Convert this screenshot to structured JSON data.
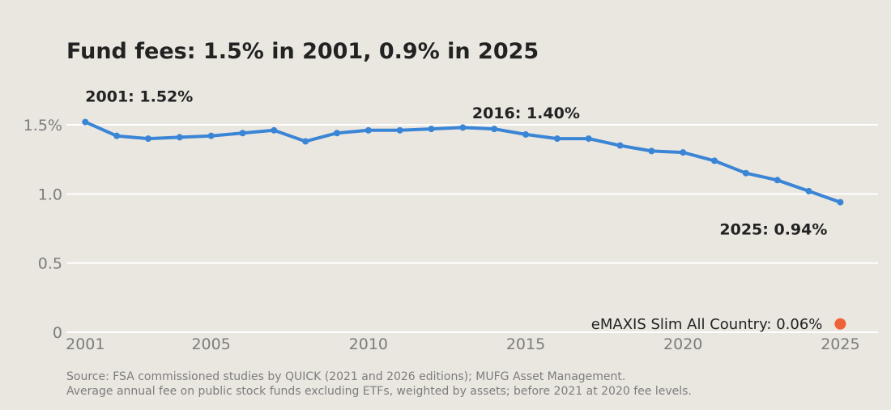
{
  "title": "Fund fees: 1.5% in 2001, 0.9% in 2025",
  "source_lines": [
    "Source: FSA commissioned studies by QUICK (2021 and 2026 editions); MUFG Asset Management.",
    "Average annual fee on public stock funds excluding ETFs, weighted by assets; before 2021 at 2020 fee levels."
  ],
  "colors": {
    "background": "#eae7e1",
    "line": "#3a85d5",
    "point": "#ed6239",
    "grid": "#ffffff",
    "tick_text": "#7d7d7d",
    "label_text": "#222222"
  },
  "chart_data": {
    "type": "line",
    "title": "Fund fees: 1.5% in 2001, 0.9% in 2025",
    "xlabel": "",
    "ylabel": "",
    "xlim": [
      2000.4,
      2026.2
    ],
    "ylim": [
      0,
      1.6
    ],
    "grid": "horizontal",
    "x_ticks": [
      2001,
      2005,
      2010,
      2015,
      2020,
      2025
    ],
    "x_tick_labels": [
      "2001",
      "2005",
      "2010",
      "2015",
      "2020",
      "2025"
    ],
    "y_ticks": [
      0,
      0.5,
      1.0,
      1.5
    ],
    "y_tick_labels": [
      "0",
      "0.5",
      "1.0",
      "1.5%"
    ],
    "series": [
      {
        "x": [
          2001,
          2002,
          2003,
          2004,
          2005,
          2006,
          2007,
          2008,
          2009,
          2010,
          2011,
          2012,
          2013,
          2014,
          2015,
          2016,
          2017,
          2018,
          2019,
          2020,
          2021,
          2022,
          2023,
          2024,
          2025
        ],
        "values": [
          1.52,
          1.42,
          1.4,
          1.41,
          1.42,
          1.44,
          1.46,
          1.38,
          1.44,
          1.46,
          1.46,
          1.47,
          1.48,
          1.47,
          1.43,
          1.4,
          1.4,
          1.35,
          1.31,
          1.3,
          1.24,
          1.15,
          1.1,
          1.02,
          0.94
        ]
      }
    ],
    "annotations": [
      {
        "text": "2001: 1.52%",
        "x": 2001,
        "y": 1.52
      },
      {
        "text": "2016: 1.40%",
        "x": 2016,
        "y": 1.4
      },
      {
        "text": "2025: 0.94%",
        "x": 2025,
        "y": 0.94
      }
    ],
    "highlight_point": {
      "label": "eMAXIS Slim All Country: 0.06%",
      "x": 2025,
      "y": 0.06
    }
  }
}
